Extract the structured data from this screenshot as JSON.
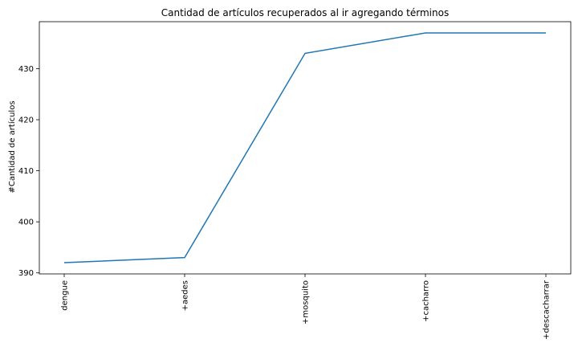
{
  "chart_data": {
    "type": "line",
    "title": "Cantidad de artículos recuperados al ir agregando términos",
    "xlabel": "",
    "ylabel": "#Cantidad de artículos",
    "categories": [
      "dengue",
      "+aedes",
      "+mosquito",
      "+cacharro",
      "+descacharrar"
    ],
    "series": [
      {
        "values": [
          392,
          393,
          433,
          437,
          437
        ]
      }
    ],
    "ylim": [
      389.8,
      439.2
    ],
    "yticks": [
      390,
      400,
      410,
      420,
      430
    ],
    "grid": false,
    "line_color": "#1f77b4"
  }
}
